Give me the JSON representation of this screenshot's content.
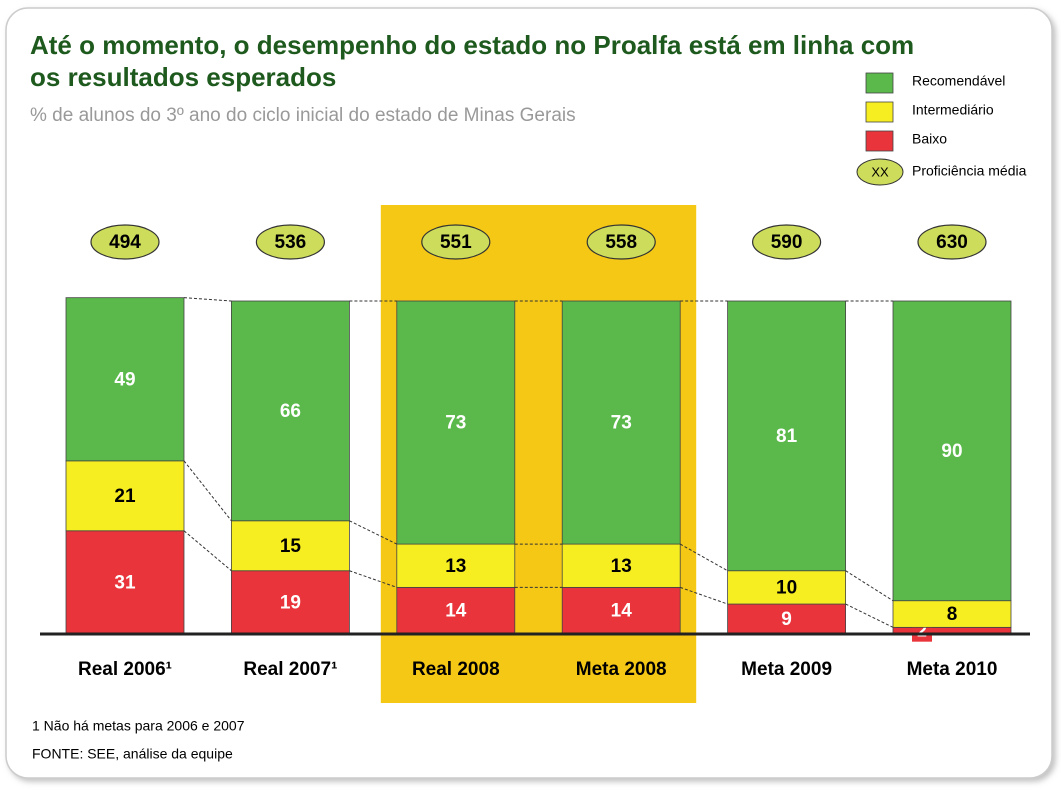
{
  "chart_data": {
    "type": "bar",
    "stacked": true,
    "title": "Até o momento, o desempenho do estado no Proalfa está em linha com os resultados esperados",
    "subtitle": "% de alunos do 3º ano do ciclo inicial do estado de Minas Gerais",
    "categories": [
      "Real 2006¹",
      "Real 2007¹",
      "Real 2008",
      "Meta 2008",
      "Meta 2009",
      "Meta 2010"
    ],
    "series": [
      {
        "name": "Baixo",
        "color": "#e8343a",
        "label_color": "#ffffff",
        "values": [
          31,
          19,
          14,
          14,
          9,
          2
        ]
      },
      {
        "name": "Intermediário",
        "color": "#f7ee22",
        "label_color": "#000000",
        "values": [
          21,
          15,
          13,
          13,
          10,
          8
        ]
      },
      {
        "name": "Recomendável",
        "color": "#5ab94a",
        "label_color": "#ffffff",
        "values": [
          49,
          66,
          73,
          73,
          81,
          90
        ]
      }
    ],
    "proficiency": {
      "name": "Proficiência média",
      "symbol": "XX",
      "color": "#cddc5a",
      "values": [
        494,
        536,
        551,
        558,
        590,
        630
      ]
    },
    "highlight_categories": [
      "Real 2008",
      "Meta 2008"
    ],
    "highlight_color": "#f5c816",
    "footnote": "1 Não há metas para 2006 e 2007",
    "source": "FONTE: SEE, análise da equipe"
  }
}
